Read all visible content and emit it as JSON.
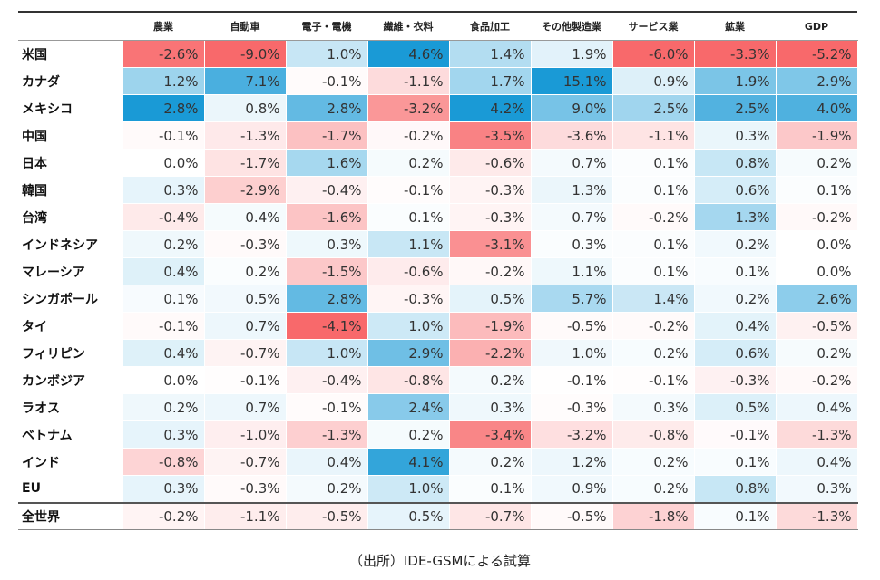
{
  "chart_data": {
    "type": "heatmap",
    "columns": [
      "農業",
      "自動車",
      "電子・電機",
      "繊維・衣料",
      "食品加工",
      "その他製造業",
      "サービス業",
      "鉱業",
      "GDP"
    ],
    "rows": [
      {
        "label": "米国",
        "values": [
          "-2.6%",
          "-9.0%",
          "1.0%",
          "4.6%",
          "1.4%",
          "1.9%",
          "-6.0%",
          "-3.3%",
          "-5.2%"
        ]
      },
      {
        "label": "カナダ",
        "values": [
          "1.2%",
          "7.1%",
          "-0.1%",
          "-1.1%",
          "1.7%",
          "15.1%",
          "0.9%",
          "1.9%",
          "2.9%"
        ]
      },
      {
        "label": "メキシコ",
        "values": [
          "2.8%",
          "0.8%",
          "2.8%",
          "-3.2%",
          "4.2%",
          "9.0%",
          "2.5%",
          "2.5%",
          "4.0%"
        ]
      },
      {
        "label": "中国",
        "values": [
          "-0.1%",
          "-1.3%",
          "-1.7%",
          "-0.2%",
          "-3.5%",
          "-3.6%",
          "-1.1%",
          "0.3%",
          "-1.9%"
        ]
      },
      {
        "label": "日本",
        "values": [
          "0.0%",
          "-1.7%",
          "1.6%",
          "0.2%",
          "-0.6%",
          "0.7%",
          "0.1%",
          "0.8%",
          "0.2%"
        ]
      },
      {
        "label": "韓国",
        "values": [
          "0.3%",
          "-2.9%",
          "-0.4%",
          "-0.1%",
          "-0.3%",
          "1.3%",
          "0.1%",
          "0.6%",
          "0.1%"
        ]
      },
      {
        "label": "台湾",
        "values": [
          "-0.4%",
          "0.4%",
          "-1.6%",
          "0.1%",
          "-0.3%",
          "0.7%",
          "-0.2%",
          "1.3%",
          "-0.2%"
        ]
      },
      {
        "label": "インドネシア",
        "values": [
          "0.2%",
          "-0.3%",
          "0.3%",
          "1.1%",
          "-3.1%",
          "0.3%",
          "0.1%",
          "0.2%",
          "0.0%"
        ]
      },
      {
        "label": "マレーシア",
        "values": [
          "0.4%",
          "0.2%",
          "-1.5%",
          "-0.6%",
          "-0.2%",
          "1.1%",
          "0.1%",
          "0.1%",
          "0.0%"
        ]
      },
      {
        "label": "シンガポール",
        "values": [
          "0.1%",
          "0.5%",
          "2.8%",
          "-0.3%",
          "0.5%",
          "5.7%",
          "1.4%",
          "0.2%",
          "2.6%"
        ]
      },
      {
        "label": "タイ",
        "values": [
          "-0.1%",
          "0.7%",
          "-4.1%",
          "1.0%",
          "-1.9%",
          "-0.5%",
          "-0.2%",
          "0.4%",
          "-0.5%"
        ]
      },
      {
        "label": "フィリピン",
        "values": [
          "0.4%",
          "-0.7%",
          "1.0%",
          "2.9%",
          "-2.2%",
          "1.0%",
          "0.2%",
          "0.6%",
          "0.2%"
        ]
      },
      {
        "label": "カンボジア",
        "values": [
          "0.0%",
          "-0.1%",
          "-0.4%",
          "-0.8%",
          "0.2%",
          "-0.1%",
          "-0.1%",
          "-0.3%",
          "-0.2%"
        ]
      },
      {
        "label": "ラオス",
        "values": [
          "0.2%",
          "0.7%",
          "-0.1%",
          "2.4%",
          "0.3%",
          "-0.3%",
          "0.3%",
          "0.5%",
          "0.4%"
        ]
      },
      {
        "label": "ベトナム",
        "values": [
          "0.3%",
          "-1.0%",
          "-1.3%",
          "0.2%",
          "-3.4%",
          "-3.2%",
          "-0.8%",
          "-0.1%",
          "-1.3%"
        ]
      },
      {
        "label": "インド",
        "values": [
          "-0.8%",
          "-0.7%",
          "0.4%",
          "4.1%",
          "0.2%",
          "1.2%",
          "0.2%",
          "0.1%",
          "0.4%"
        ]
      },
      {
        "label": "EU",
        "values": [
          "0.3%",
          "-0.3%",
          "0.2%",
          "1.0%",
          "0.1%",
          "0.9%",
          "0.2%",
          "0.8%",
          "0.3%"
        ]
      },
      {
        "label": "全世界",
        "values": [
          "-0.2%",
          "-1.1%",
          "-0.5%",
          "0.5%",
          "-0.7%",
          "-0.5%",
          "-1.8%",
          "0.1%",
          "-1.3%"
        ]
      }
    ],
    "colors": {
      "negative": "#f8696b",
      "positive": "#1a9ad6"
    }
  },
  "caption": "（出所）IDE-GSMによる試算"
}
